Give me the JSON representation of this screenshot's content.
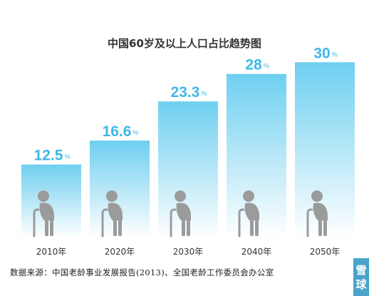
{
  "chart_data": {
    "type": "bar",
    "title": "中国60岁及以上人口占比趋势图",
    "categories": [
      "2010年",
      "2020年",
      "2030年",
      "2040年",
      "2050年"
    ],
    "series": [
      {
        "values": [
          12.5,
          16.6,
          23.3,
          28,
          30
        ]
      }
    ],
    "value_labels": [
      "12.5",
      "16.6",
      "23.3",
      "28",
      "30"
    ],
    "value_unit": "%",
    "ylim": [
      0,
      37
    ],
    "colors": {
      "bar_top": "#6ecff0",
      "bar_bottom": "#ffffff",
      "label": "#3db8e8",
      "figure": "#9b9b9b"
    }
  },
  "source_text": "数据来源：中国老龄事业发展报告(2013)、全国老龄工作委员会办公室",
  "watermark": {
    "line1": "雪",
    "line2": "球"
  }
}
